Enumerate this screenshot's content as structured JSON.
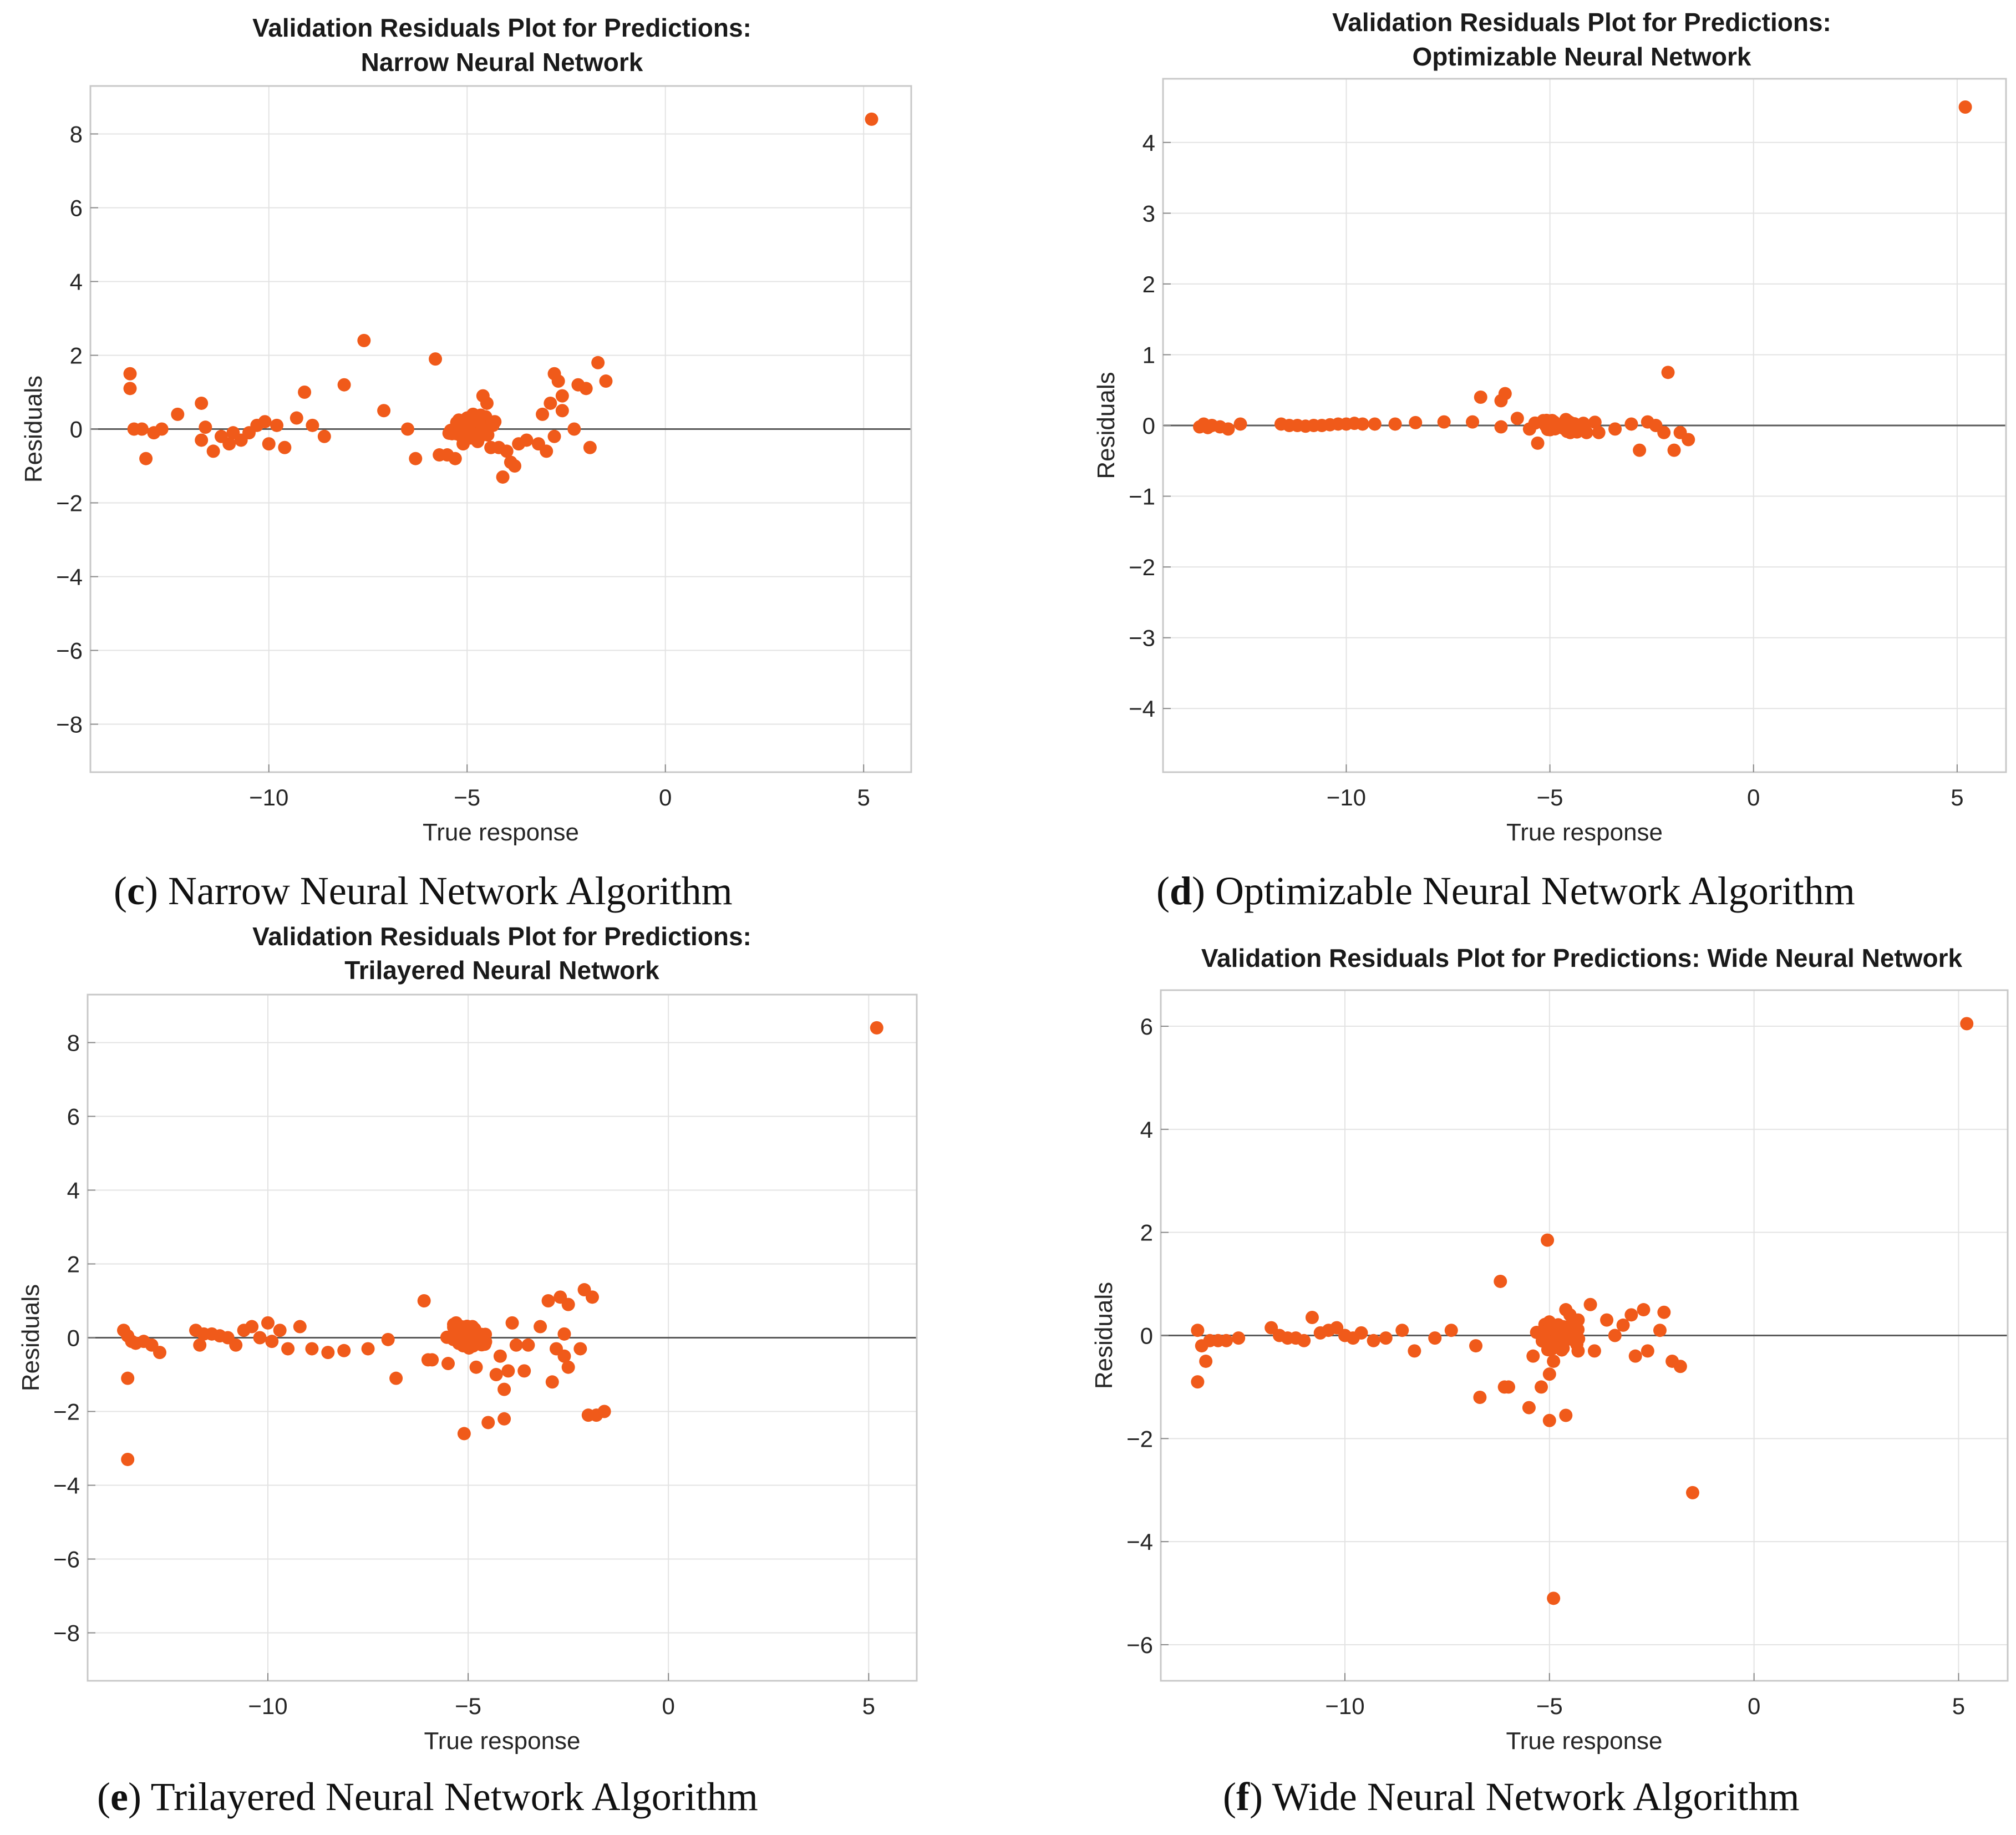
{
  "captions": [
    {
      "letter": "c",
      "text": "Narrow Neural Network Algorithm"
    },
    {
      "letter": "d",
      "text": "Optimizable Neural Network Algorithm"
    },
    {
      "letter": "e",
      "text": "Trilayered Neural Network Algorithm"
    },
    {
      "letter": "f",
      "text": "Wide Neural Network Algorithm"
    }
  ],
  "colors": {
    "points": "#F05A1A",
    "zero_line": "#5a5a5a",
    "grid": "#e3e3e3",
    "axes": "#c8c8c8"
  },
  "chart_data": [
    {
      "type": "scatter",
      "title_lines": [
        "Validation Residuals Plot for Predictions:",
        "Narrow Neural Network"
      ],
      "xlabel": "True response",
      "ylabel": "Residuals",
      "xlim": [
        -14.5,
        6.2
      ],
      "ylim": [
        -9.3,
        9.3
      ],
      "xticks": [
        -10,
        -5,
        0,
        5
      ],
      "yticks": [
        -8,
        -6,
        -4,
        -2,
        0,
        2,
        4,
        6,
        8
      ],
      "zero_line": true,
      "grid": true,
      "points": [
        [
          -13.5,
          1.5
        ],
        [
          -13.5,
          1.1
        ],
        [
          -13.4,
          0.0
        ],
        [
          -13.2,
          0.0
        ],
        [
          -13.1,
          -0.8
        ],
        [
          -12.9,
          -0.1
        ],
        [
          -12.7,
          0.0
        ],
        [
          -12.3,
          0.4
        ],
        [
          -11.7,
          0.7
        ],
        [
          -11.6,
          0.05
        ],
        [
          -11.7,
          -0.3
        ],
        [
          -11.4,
          -0.6
        ],
        [
          -11.2,
          -0.2
        ],
        [
          -11.0,
          -0.4
        ],
        [
          -10.9,
          -0.1
        ],
        [
          -10.7,
          -0.3
        ],
        [
          -10.5,
          -0.1
        ],
        [
          -10.3,
          0.1
        ],
        [
          -10.1,
          0.2
        ],
        [
          -10.0,
          -0.4
        ],
        [
          -9.8,
          0.1
        ],
        [
          -9.6,
          -0.5
        ],
        [
          -9.3,
          0.3
        ],
        [
          -9.1,
          1.0
        ],
        [
          -8.9,
          0.1
        ],
        [
          -8.6,
          -0.2
        ],
        [
          -8.1,
          1.2
        ],
        [
          -7.6,
          2.4
        ],
        [
          -7.1,
          0.5
        ],
        [
          -6.5,
          0.0
        ],
        [
          -6.3,
          -0.8
        ],
        [
          -5.8,
          1.9
        ],
        [
          -5.7,
          -0.7
        ],
        [
          -5.5,
          -0.7
        ],
        [
          -5.3,
          -0.8
        ],
        [
          -5.15,
          0.0
        ],
        [
          -5.1,
          -0.4
        ],
        [
          -5.0,
          0.3
        ],
        [
          -4.95,
          0.1
        ],
        [
          -4.9,
          -0.2
        ],
        [
          -4.85,
          0.4
        ],
        [
          -4.8,
          0.0
        ],
        [
          -4.75,
          -0.3
        ],
        [
          -4.7,
          0.2
        ],
        [
          -4.6,
          0.9
        ],
        [
          -4.5,
          0.7
        ],
        [
          -4.4,
          -0.5
        ],
        [
          -4.35,
          0.1
        ],
        [
          -4.3,
          0.2
        ],
        [
          -4.2,
          -0.5
        ],
        [
          -4.1,
          -1.3
        ],
        [
          -4.0,
          -0.6
        ],
        [
          -3.9,
          -0.9
        ],
        [
          -3.8,
          -1.0
        ],
        [
          -3.7,
          -0.4
        ],
        [
          -3.5,
          -0.3
        ],
        [
          -3.2,
          -0.4
        ],
        [
          -3.1,
          0.4
        ],
        [
          -3.0,
          -0.6
        ],
        [
          -2.9,
          0.7
        ],
        [
          -2.8,
          -0.2
        ],
        [
          -2.8,
          1.5
        ],
        [
          -2.7,
          1.3
        ],
        [
          -2.6,
          0.9
        ],
        [
          -2.6,
          0.5
        ],
        [
          -2.3,
          0.0
        ],
        [
          -2.2,
          1.2
        ],
        [
          -2.0,
          1.1
        ],
        [
          -1.9,
          -0.5
        ],
        [
          -1.7,
          1.8
        ],
        [
          -1.5,
          1.3
        ],
        [
          5.2,
          8.4
        ]
      ],
      "cluster": {
        "x_center": -4.95,
        "x_spread": 0.32,
        "y_spread": 0.22,
        "count": 70
      }
    },
    {
      "type": "scatter",
      "title_lines": [
        "Validation Residuals Plot for Predictions:",
        "Optimizable Neural Network"
      ],
      "xlabel": "True response",
      "ylabel": "Residuals",
      "xlim": [
        -14.5,
        6.2
      ],
      "ylim": [
        -4.9,
        4.9
      ],
      "xticks": [
        -10,
        -5,
        0,
        5
      ],
      "yticks": [
        -4,
        -3,
        -2,
        -1,
        0,
        1,
        2,
        3,
        4
      ],
      "zero_line": true,
      "grid": true,
      "points": [
        [
          -13.6,
          -0.02
        ],
        [
          -13.5,
          0.02
        ],
        [
          -13.4,
          -0.03
        ],
        [
          -13.3,
          0.0
        ],
        [
          -13.1,
          -0.02
        ],
        [
          -12.9,
          -0.05
        ],
        [
          -12.6,
          0.02
        ],
        [
          -11.6,
          0.02
        ],
        [
          -11.4,
          0.0
        ],
        [
          -11.2,
          0.0
        ],
        [
          -11.0,
          -0.01
        ],
        [
          -10.8,
          0.0
        ],
        [
          -10.6,
          0.0
        ],
        [
          -10.4,
          0.01
        ],
        [
          -10.2,
          0.02
        ],
        [
          -10.0,
          0.02
        ],
        [
          -9.8,
          0.03
        ],
        [
          -9.6,
          0.02
        ],
        [
          -9.3,
          0.02
        ],
        [
          -8.8,
          0.02
        ],
        [
          -8.3,
          0.04
        ],
        [
          -7.6,
          0.05
        ],
        [
          -6.9,
          0.05
        ],
        [
          -6.7,
          0.4
        ],
        [
          -6.2,
          0.35
        ],
        [
          -6.1,
          0.45
        ],
        [
          -6.2,
          -0.02
        ],
        [
          -5.8,
          0.1
        ],
        [
          -5.5,
          -0.05
        ],
        [
          -5.3,
          -0.25
        ],
        [
          -5.0,
          0.02
        ],
        [
          -4.9,
          0.05
        ],
        [
          -4.5,
          -0.1
        ],
        [
          -4.1,
          -0.1
        ],
        [
          -3.8,
          -0.1
        ],
        [
          -3.4,
          -0.05
        ],
        [
          -3.0,
          0.02
        ],
        [
          -2.8,
          -0.35
        ],
        [
          -2.6,
          0.05
        ],
        [
          -2.4,
          0.0
        ],
        [
          -2.2,
          -0.1
        ],
        [
          -2.1,
          0.75
        ],
        [
          -1.95,
          -0.35
        ],
        [
          -1.8,
          -0.1
        ],
        [
          -1.6,
          -0.2
        ],
        [
          5.2,
          4.5
        ]
      ],
      "cluster": {
        "x_center": -4.7,
        "x_spread": 0.5,
        "y_spread": 0.05,
        "count": 45
      }
    },
    {
      "type": "scatter",
      "title_lines": [
        "Validation Residuals Plot for Predictions:",
        "Trilayered Neural Network"
      ],
      "xlabel": "True response",
      "ylabel": "Residuals",
      "xlim": [
        -14.5,
        6.2
      ],
      "ylim": [
        -9.3,
        9.3
      ],
      "xticks": [
        -10,
        -5,
        0,
        5
      ],
      "yticks": [
        -8,
        -6,
        -4,
        -2,
        0,
        2,
        4,
        6,
        8
      ],
      "zero_line": true,
      "grid": true,
      "points": [
        [
          -13.6,
          0.2
        ],
        [
          -13.5,
          0.05
        ],
        [
          -13.4,
          -0.1
        ],
        [
          -13.3,
          -0.15
        ],
        [
          -13.1,
          -0.1
        ],
        [
          -12.9,
          -0.2
        ],
        [
          -12.7,
          -0.4
        ],
        [
          -13.5,
          -1.1
        ],
        [
          -13.5,
          -3.3
        ],
        [
          -11.8,
          0.2
        ],
        [
          -11.7,
          -0.2
        ],
        [
          -11.6,
          0.1
        ],
        [
          -11.4,
          0.1
        ],
        [
          -11.2,
          0.05
        ],
        [
          -11.0,
          0.0
        ],
        [
          -10.8,
          -0.2
        ],
        [
          -10.6,
          0.2
        ],
        [
          -10.4,
          0.3
        ],
        [
          -10.2,
          0.0
        ],
        [
          -10.0,
          0.4
        ],
        [
          -9.9,
          -0.1
        ],
        [
          -9.7,
          0.2
        ],
        [
          -9.5,
          -0.3
        ],
        [
          -9.2,
          0.3
        ],
        [
          -8.9,
          -0.3
        ],
        [
          -8.5,
          -0.4
        ],
        [
          -8.1,
          -0.35
        ],
        [
          -7.5,
          -0.3
        ],
        [
          -7.0,
          -0.05
        ],
        [
          -6.8,
          -1.1
        ],
        [
          -6.1,
          1.0
        ],
        [
          -6.0,
          -0.6
        ],
        [
          -5.9,
          -0.6
        ],
        [
          -5.5,
          -0.7
        ],
        [
          -5.3,
          0.4
        ],
        [
          -5.1,
          -2.6
        ],
        [
          -4.8,
          -0.8
        ],
        [
          -4.5,
          -2.3
        ],
        [
          -4.3,
          -1.0
        ],
        [
          -4.2,
          -0.5
        ],
        [
          -4.1,
          -1.4
        ],
        [
          -4.0,
          -0.9
        ],
        [
          -3.9,
          0.4
        ],
        [
          -3.8,
          -0.2
        ],
        [
          -3.6,
          -0.9
        ],
        [
          -3.5,
          -0.2
        ],
        [
          -3.2,
          0.3
        ],
        [
          -3.0,
          1.0
        ],
        [
          -2.9,
          -1.2
        ],
        [
          -2.8,
          -0.3
        ],
        [
          -2.7,
          1.1
        ],
        [
          -2.6,
          -0.5
        ],
        [
          -2.5,
          -0.8
        ],
        [
          -2.2,
          -0.3
        ],
        [
          -2.1,
          1.3
        ],
        [
          -2.0,
          -2.1
        ],
        [
          -1.9,
          1.1
        ],
        [
          -1.8,
          -2.1
        ],
        [
          -1.6,
          -2.0
        ],
        [
          -4.1,
          -2.2
        ],
        [
          -2.6,
          0.1
        ],
        [
          -2.5,
          0.9
        ],
        [
          5.2,
          8.4
        ]
      ],
      "cluster": {
        "x_center": -4.95,
        "x_spread": 0.32,
        "y_spread": 0.22,
        "count": 70
      }
    },
    {
      "type": "scatter",
      "title_lines": [
        "Validation Residuals Plot for Predictions: Wide Neural Network"
      ],
      "xlabel": "True response",
      "ylabel": "Residuals",
      "xlim": [
        -14.5,
        6.2
      ],
      "ylim": [
        -6.7,
        6.7
      ],
      "xticks": [
        -10,
        -5,
        0,
        5
      ],
      "yticks": [
        -6,
        -4,
        -2,
        0,
        2,
        4,
        6
      ],
      "zero_line": true,
      "grid": true,
      "points": [
        [
          -13.6,
          0.1
        ],
        [
          -13.5,
          -0.2
        ],
        [
          -13.4,
          -0.5
        ],
        [
          -13.6,
          -0.9
        ],
        [
          -13.3,
          -0.1
        ],
        [
          -13.1,
          -0.1
        ],
        [
          -12.9,
          -0.1
        ],
        [
          -12.6,
          -0.05
        ],
        [
          -11.8,
          0.15
        ],
        [
          -11.6,
          0.0
        ],
        [
          -11.4,
          -0.05
        ],
        [
          -11.2,
          -0.05
        ],
        [
          -11.0,
          -0.1
        ],
        [
          -10.8,
          0.35
        ],
        [
          -10.6,
          0.05
        ],
        [
          -10.4,
          0.1
        ],
        [
          -10.2,
          0.15
        ],
        [
          -10.0,
          0.0
        ],
        [
          -9.8,
          -0.05
        ],
        [
          -9.6,
          0.05
        ],
        [
          -9.3,
          -0.1
        ],
        [
          -9.0,
          -0.05
        ],
        [
          -8.6,
          0.1
        ],
        [
          -8.3,
          -0.3
        ],
        [
          -7.8,
          -0.05
        ],
        [
          -7.4,
          0.1
        ],
        [
          -6.8,
          -0.2
        ],
        [
          -6.7,
          -1.2
        ],
        [
          -6.2,
          1.05
        ],
        [
          -6.1,
          -1.0
        ],
        [
          -6.0,
          -1.0
        ],
        [
          -5.5,
          -1.4
        ],
        [
          -5.4,
          -0.4
        ],
        [
          -5.2,
          -1.0
        ],
        [
          -5.05,
          1.85
        ],
        [
          -5.0,
          -0.75
        ],
        [
          -5.0,
          -1.65
        ],
        [
          -4.9,
          -0.5
        ],
        [
          -4.9,
          -5.1
        ],
        [
          -4.6,
          -1.55
        ],
        [
          -4.6,
          0.5
        ],
        [
          -4.3,
          -0.3
        ],
        [
          -4.0,
          0.6
        ],
        [
          -3.9,
          -0.3
        ],
        [
          -3.6,
          0.3
        ],
        [
          -3.4,
          0.0
        ],
        [
          -3.2,
          0.2
        ],
        [
          -3.0,
          0.4
        ],
        [
          -2.9,
          -0.4
        ],
        [
          -2.7,
          0.5
        ],
        [
          -2.6,
          -0.3
        ],
        [
          -2.3,
          0.1
        ],
        [
          -2.2,
          0.45
        ],
        [
          -2.0,
          -0.5
        ],
        [
          -1.8,
          -0.6
        ],
        [
          -1.5,
          -3.05
        ],
        [
          -4.5,
          0.4
        ],
        [
          -4.3,
          0.3
        ],
        [
          5.2,
          6.05
        ]
      ],
      "cluster": {
        "x_center": -4.85,
        "x_spread": 0.35,
        "y_spread": 0.18,
        "count": 70
      }
    }
  ]
}
